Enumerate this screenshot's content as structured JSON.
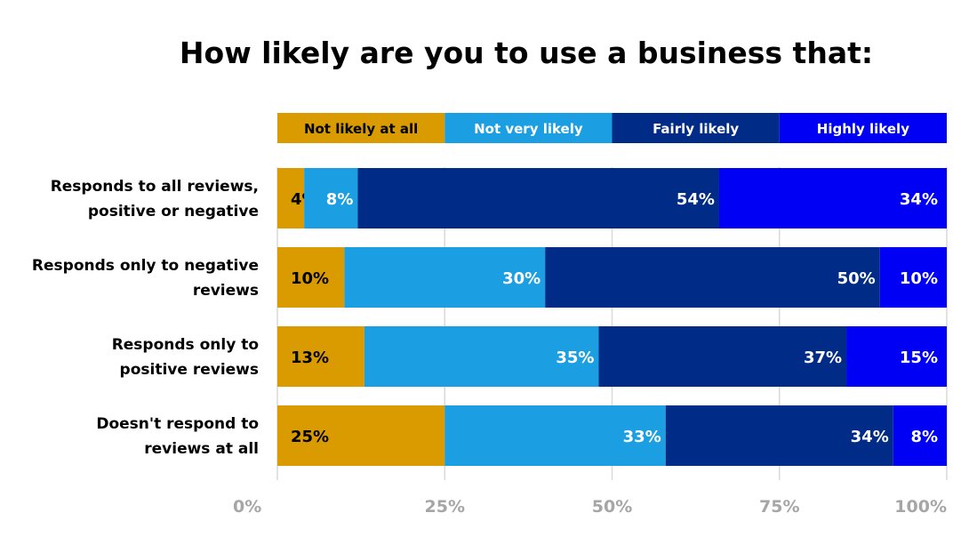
{
  "chart_data": {
    "type": "bar",
    "orientation": "horizontal",
    "stacked": true,
    "title": "How likely are you to use a business that:",
    "categories": [
      "Responds to all reviews, positive or negative",
      "Responds only to negative reviews",
      "Responds only to positive reviews",
      "Doesn't respond to reviews at all"
    ],
    "category_lines": [
      [
        "Responds to all reviews,",
        "positive or negative"
      ],
      [
        "Responds only to negative",
        "reviews"
      ],
      [
        "Responds only to",
        "positive reviews"
      ],
      [
        "Doesn't respond to",
        "reviews at all"
      ]
    ],
    "series": [
      {
        "name": "Not likely at all",
        "color": "#d99b00",
        "label_color": "#000000",
        "values": [
          4,
          10,
          13,
          25
        ],
        "labels": [
          "4%",
          "10%",
          "13%",
          "25%"
        ]
      },
      {
        "name": "Not very likely",
        "color": "#1b9fe2",
        "label_color": "#ffffff",
        "values": [
          8,
          30,
          35,
          33
        ],
        "labels": [
          "8%",
          "30%",
          "35%",
          "33%"
        ]
      },
      {
        "name": "Fairly likely",
        "color": "#002c87",
        "label_color": "#ffffff",
        "values": [
          54,
          50,
          37,
          34
        ],
        "labels": [
          "54%",
          "50%",
          "37%",
          "34%"
        ]
      },
      {
        "name": "Highly likely",
        "color": "#0000f4",
        "label_color": "#ffffff",
        "values": [
          34,
          10,
          15,
          8
        ],
        "labels": [
          "34%",
          "10%",
          "15%",
          "8%"
        ]
      }
    ],
    "xlim": [
      0,
      100
    ],
    "xticks": [
      0,
      25,
      50,
      75,
      100
    ],
    "xtick_labels": [
      "0%",
      "25%",
      "50%",
      "75%",
      "100%"
    ],
    "grid": true,
    "legend_position": "top"
  }
}
